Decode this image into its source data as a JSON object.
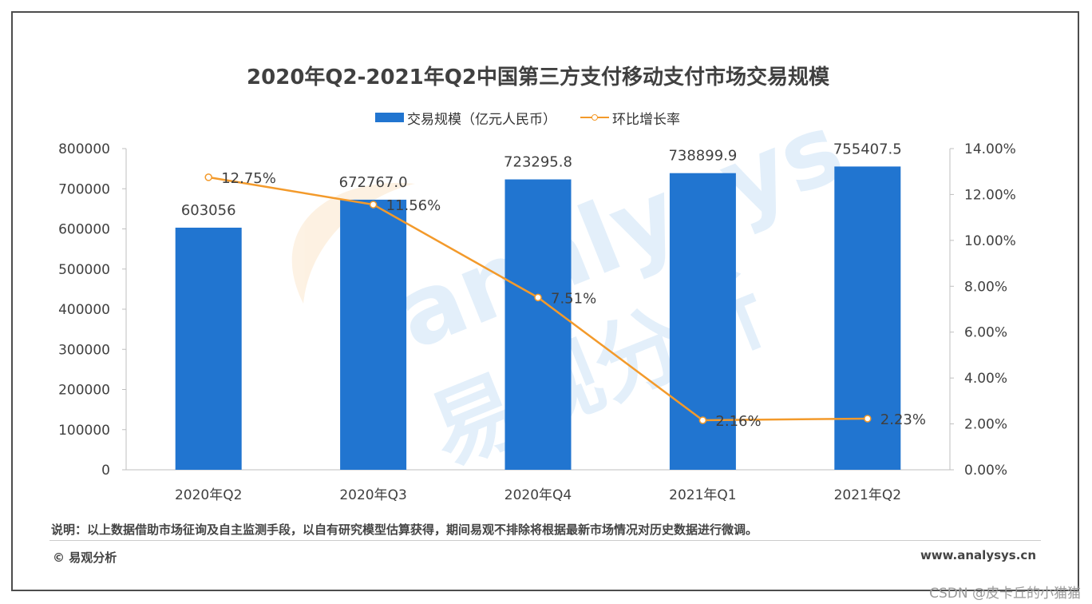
{
  "chart_data": {
    "type": "bar",
    "title": "2020年Q2-2021年Q2中国第三方支付移动支付市场交易规模",
    "categories": [
      "2020年Q2",
      "2020年Q3",
      "2020年Q4",
      "2021年Q1",
      "2021年Q2"
    ],
    "series": [
      {
        "name": "交易规模（亿元人民币）",
        "type": "bar",
        "axis": "left",
        "color": "#2175d0",
        "values": [
          603056,
          672767.0,
          723295.8,
          738899.9,
          755407.5
        ],
        "labels": [
          "603056",
          "672767.0",
          "723295.8",
          "738899.9",
          "755407.5"
        ]
      },
      {
        "name": "环比增长率",
        "type": "line",
        "axis": "right",
        "color": "#f39a2b",
        "values": [
          12.75,
          11.56,
          7.51,
          2.16,
          2.23
        ],
        "labels": [
          "12.75%",
          "11.56%",
          "7.51%",
          "2.16%",
          "2.23%"
        ]
      }
    ],
    "y_left": {
      "min": 0,
      "max": 800000,
      "ticks": [
        "0",
        "100000",
        "200000",
        "300000",
        "400000",
        "500000",
        "600000",
        "700000",
        "800000"
      ]
    },
    "y_right": {
      "min": 0,
      "max": 14,
      "ticks": [
        "0.00%",
        "2.00%",
        "4.00%",
        "6.00%",
        "8.00%",
        "10.00%",
        "12.00%",
        "14.00%"
      ]
    },
    "legend_position": "top-center",
    "grid": false
  },
  "note": "说明：以上数据借助市场征询及自主监测手段，以自有研究模型估算获得，期间易观不排除将根据最新市场情况对历史数据进行微调。",
  "copyright": "© 易观分析",
  "website": "www.analysys.cn",
  "watermark_csdn": "CSDN @皮卡丘的小猫猫",
  "watermark_brand": "analysys",
  "watermark_cn": "易观分析"
}
